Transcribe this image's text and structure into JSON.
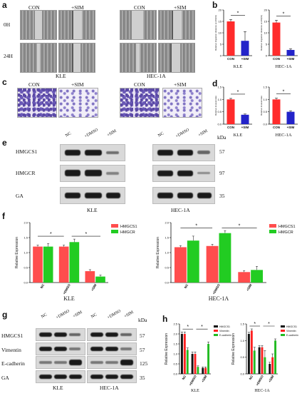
{
  "panel_labels": {
    "a": "a",
    "b": "b",
    "c": "c",
    "d": "d",
    "e": "e",
    "f": "f",
    "g": "g",
    "h": "h"
  },
  "a": {
    "conditions": [
      "CON",
      "+SIM",
      "CON",
      "+SIM"
    ],
    "times": [
      "0H",
      "24H"
    ],
    "cell_lines": [
      "KLE",
      "HEC-1A"
    ]
  },
  "c": {
    "conditions": [
      "CON",
      "+SIM",
      "CON",
      "+SIM"
    ]
  },
  "e": {
    "lanes": [
      "NC",
      "+DMSO",
      "+SIM"
    ],
    "rows": [
      "HMGCS1",
      "HMGCR",
      "GA"
    ],
    "kda_header": "kDa",
    "kda": [
      "57",
      "97",
      "35"
    ],
    "cell_lines": [
      "KLE",
      "HEC-1A"
    ]
  },
  "g": {
    "lanes": [
      "NC",
      "+DMSO",
      "+SIM"
    ],
    "rows": [
      "HMGCS1",
      "Vimentin",
      "E-cadherin",
      "GA"
    ],
    "kda_header": "kDa",
    "kda": [
      "57",
      "57",
      "125",
      "35"
    ],
    "cell_lines": [
      "KLE",
      "HEC-1A"
    ]
  },
  "chart_data": [
    {
      "id": "b-kle",
      "type": "bar",
      "categories": [
        "CON",
        "+SIM"
      ],
      "values": [
        15,
        6.5
      ],
      "errors": [
        0.8,
        4
      ],
      "ylim": [
        0,
        20
      ],
      "ticks": [
        "0",
        "5",
        "10",
        "15",
        "20"
      ],
      "ylabel": "Relative migration distance at 24h(%)",
      "xlabel": "KLE",
      "colors": [
        "#ff2b2b",
        "#2323c9"
      ],
      "sig": "*"
    },
    {
      "id": "b-hec",
      "type": "bar",
      "categories": [
        "CON",
        "+SIM"
      ],
      "values": [
        14.5,
        2.5
      ],
      "errors": [
        1,
        0.5
      ],
      "ylim": [
        0,
        20
      ],
      "ticks": [
        "0",
        "5",
        "10",
        "15",
        "20"
      ],
      "ylabel": "Relative migration distance at 24h(%)",
      "xlabel": "HEC-1A",
      "colors": [
        "#ff2b2b",
        "#2323c9"
      ],
      "sig": "*"
    },
    {
      "id": "d-kle",
      "type": "bar",
      "categories": [
        "CON",
        "+SIM"
      ],
      "values": [
        1.0,
        0.38
      ],
      "errors": [
        0.04,
        0.03
      ],
      "ylim": [
        0,
        1.5
      ],
      "ticks": [
        "0.0",
        "0.5",
        "1.0",
        "1.5"
      ],
      "ylabel": "Relative invasionrate",
      "xlabel": "KLE",
      "colors": [
        "#ff2b2b",
        "#2323c9"
      ],
      "sig": "*"
    },
    {
      "id": "d-hec",
      "type": "bar",
      "categories": [
        "CON",
        "+SIM"
      ],
      "values": [
        1.0,
        0.5
      ],
      "errors": [
        0.05,
        0.04
      ],
      "ylim": [
        0,
        1.5
      ],
      "ticks": [
        "0.0",
        "0.5",
        "1.0",
        "1.5"
      ],
      "ylabel": "Relative invasionrate",
      "xlabel": "HEC-1A",
      "colors": [
        "#ff2b2b",
        "#2323c9"
      ],
      "sig": "*"
    },
    {
      "id": "f-kle",
      "type": "bar",
      "categories": [
        "NC",
        "+DMSO",
        "+SIM"
      ],
      "series": [
        {
          "name": "HMGCS1",
          "values": [
            1.2,
            1.2,
            0.38
          ],
          "errors": [
            0.05,
            0.05,
            0.05
          ]
        },
        {
          "name": "HMGCR",
          "values": [
            1.2,
            1.35,
            0.2
          ],
          "errors": [
            0.1,
            0.1,
            0.05
          ]
        }
      ],
      "ylim": [
        0,
        2.0
      ],
      "ticks": [
        "0.0",
        "0.5",
        "1.0",
        "1.5",
        "2.0"
      ],
      "ylabel": "Relative Expression",
      "xlabel": "KLE",
      "colors": [
        "#ff4d4d",
        "#22cc22"
      ],
      "sig": "*"
    },
    {
      "id": "f-hec",
      "type": "bar",
      "categories": [
        "NC",
        "+DMSO",
        "+SIM"
      ],
      "series": [
        {
          "name": "HMGCS1",
          "values": [
            1.18,
            1.22,
            0.35
          ],
          "errors": [
            0.05,
            0.06,
            0.05
          ]
        },
        {
          "name": "HMGCR",
          "values": [
            1.4,
            1.65,
            0.42
          ],
          "errors": [
            0.15,
            0.08,
            0.12
          ]
        }
      ],
      "ylim": [
        0,
        2.0
      ],
      "ticks": [
        "0.0",
        "0.5",
        "1.0",
        "1.5",
        "2.0"
      ],
      "ylabel": "Relative Expression",
      "xlabel": "HEC-1A",
      "colors": [
        "#ff4d4d",
        "#22cc22"
      ],
      "sig": "*"
    },
    {
      "id": "h-kle",
      "type": "bar",
      "categories": [
        "NC",
        "+DMSO",
        "+SIM"
      ],
      "series": [
        {
          "name": "HMGCS1",
          "values": [
            2.0,
            1.0,
            0.3
          ],
          "errors": [
            0.1,
            0.1,
            0.05
          ]
        },
        {
          "name": "Vimentin",
          "values": [
            2.0,
            1.0,
            0.3
          ],
          "errors": [
            0.1,
            0.1,
            0.05
          ]
        },
        {
          "name": "E-cadherin",
          "values": [
            1.2,
            0.35,
            1.5
          ],
          "errors": [
            0.1,
            0.05,
            0.1
          ]
        }
      ],
      "ylim": [
        0,
        2.5
      ],
      "ticks": [
        "0.0",
        "0.5",
        "1.0",
        "1.5",
        "2.0",
        "2.5"
      ],
      "ylabel": "Relative Expression",
      "xlabel": "KLE",
      "colors": [
        "#111111",
        "#ff2020",
        "#22bb22"
      ],
      "sig": "*"
    },
    {
      "id": "h-hec",
      "type": "bar",
      "categories": [
        "NC",
        "+DMSO",
        "+SIM"
      ],
      "series": [
        {
          "name": "HMGCS1",
          "values": [
            1.2,
            0.8,
            0.3
          ],
          "errors": [
            0.05,
            0.05,
            0.05
          ]
        },
        {
          "name": "Vimentin",
          "values": [
            1.3,
            0.8,
            0.5
          ],
          "errors": [
            0.05,
            0.05,
            0.1
          ]
        },
        {
          "name": "E-cadherin",
          "values": [
            0.7,
            0.5,
            1.0
          ],
          "errors": [
            0.1,
            0.2,
            0.05
          ]
        }
      ],
      "ylim": [
        0,
        1.5
      ],
      "ticks": [
        "0.0",
        "0.5",
        "1.0",
        "1.5"
      ],
      "ylabel": "Relative Expression",
      "xlabel": "HEC-1A",
      "colors": [
        "#111111",
        "#ff2020",
        "#22bb22"
      ],
      "sig": "*"
    }
  ]
}
